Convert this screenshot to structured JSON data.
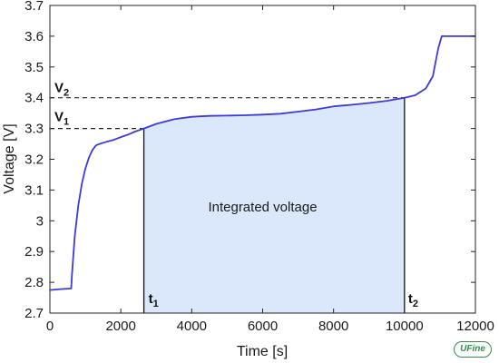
{
  "chart_data": {
    "type": "line",
    "xlabel": "Time [s]",
    "ylabel": "Voltage [V]",
    "xlim": [
      0,
      12000
    ],
    "ylim": [
      2.7,
      3.7
    ],
    "xticks": [
      0,
      2000,
      4000,
      6000,
      8000,
      10000,
      12000
    ],
    "yticks": [
      2.7,
      2.8,
      2.9,
      3.0,
      3.1,
      3.2,
      3.3,
      3.4,
      3.5,
      3.6,
      3.7
    ],
    "xtick_labels": [
      "0",
      "2000",
      "4000",
      "6000",
      "8000",
      "10000",
      "12000"
    ],
    "ytick_labels": [
      "2.7",
      "2.8",
      "2.9",
      "3",
      "3.1",
      "3.2",
      "3.3",
      "3.4",
      "3.5",
      "3.6",
      "3.7"
    ],
    "grid": false,
    "series": [
      {
        "color": "#3b3bdc",
        "x": [
          0,
          300,
          600,
          620,
          700,
          800,
          900,
          1000,
          1100,
          1200,
          1300,
          1400,
          1600,
          1800,
          2000,
          2200,
          2400,
          2650,
          3000,
          3500,
          4000,
          4500,
          5000,
          5500,
          6000,
          6500,
          7000,
          7500,
          8000,
          8500,
          9000,
          9500,
          10000,
          10300,
          10600,
          10800,
          10950,
          11050,
          12000
        ],
        "y": [
          2.775,
          2.778,
          2.78,
          2.82,
          2.95,
          3.05,
          3.12,
          3.17,
          3.205,
          3.23,
          3.245,
          3.25,
          3.257,
          3.263,
          3.272,
          3.28,
          3.29,
          3.3,
          3.315,
          3.33,
          3.338,
          3.341,
          3.342,
          3.343,
          3.345,
          3.348,
          3.355,
          3.362,
          3.372,
          3.377,
          3.383,
          3.39,
          3.4,
          3.408,
          3.43,
          3.47,
          3.56,
          3.6,
          3.6
        ]
      }
    ],
    "reference_lines": {
      "v1": {
        "label": "V",
        "subscript": "1",
        "value": 3.3
      },
      "v2": {
        "label": "V",
        "subscript": "2",
        "value": 3.4
      },
      "t1": {
        "label": "t",
        "subscript": "1",
        "value": 2650
      },
      "t2": {
        "label": "t",
        "subscript": "2",
        "value": 10000
      }
    },
    "shaded_region": {
      "label": "Integrated voltage",
      "x_start": 2650,
      "x_end": 10000,
      "color": "#dbe8fb"
    },
    "area_label_position": {
      "x": 6000,
      "y": 3.03
    }
  },
  "logo_text": "UFine"
}
